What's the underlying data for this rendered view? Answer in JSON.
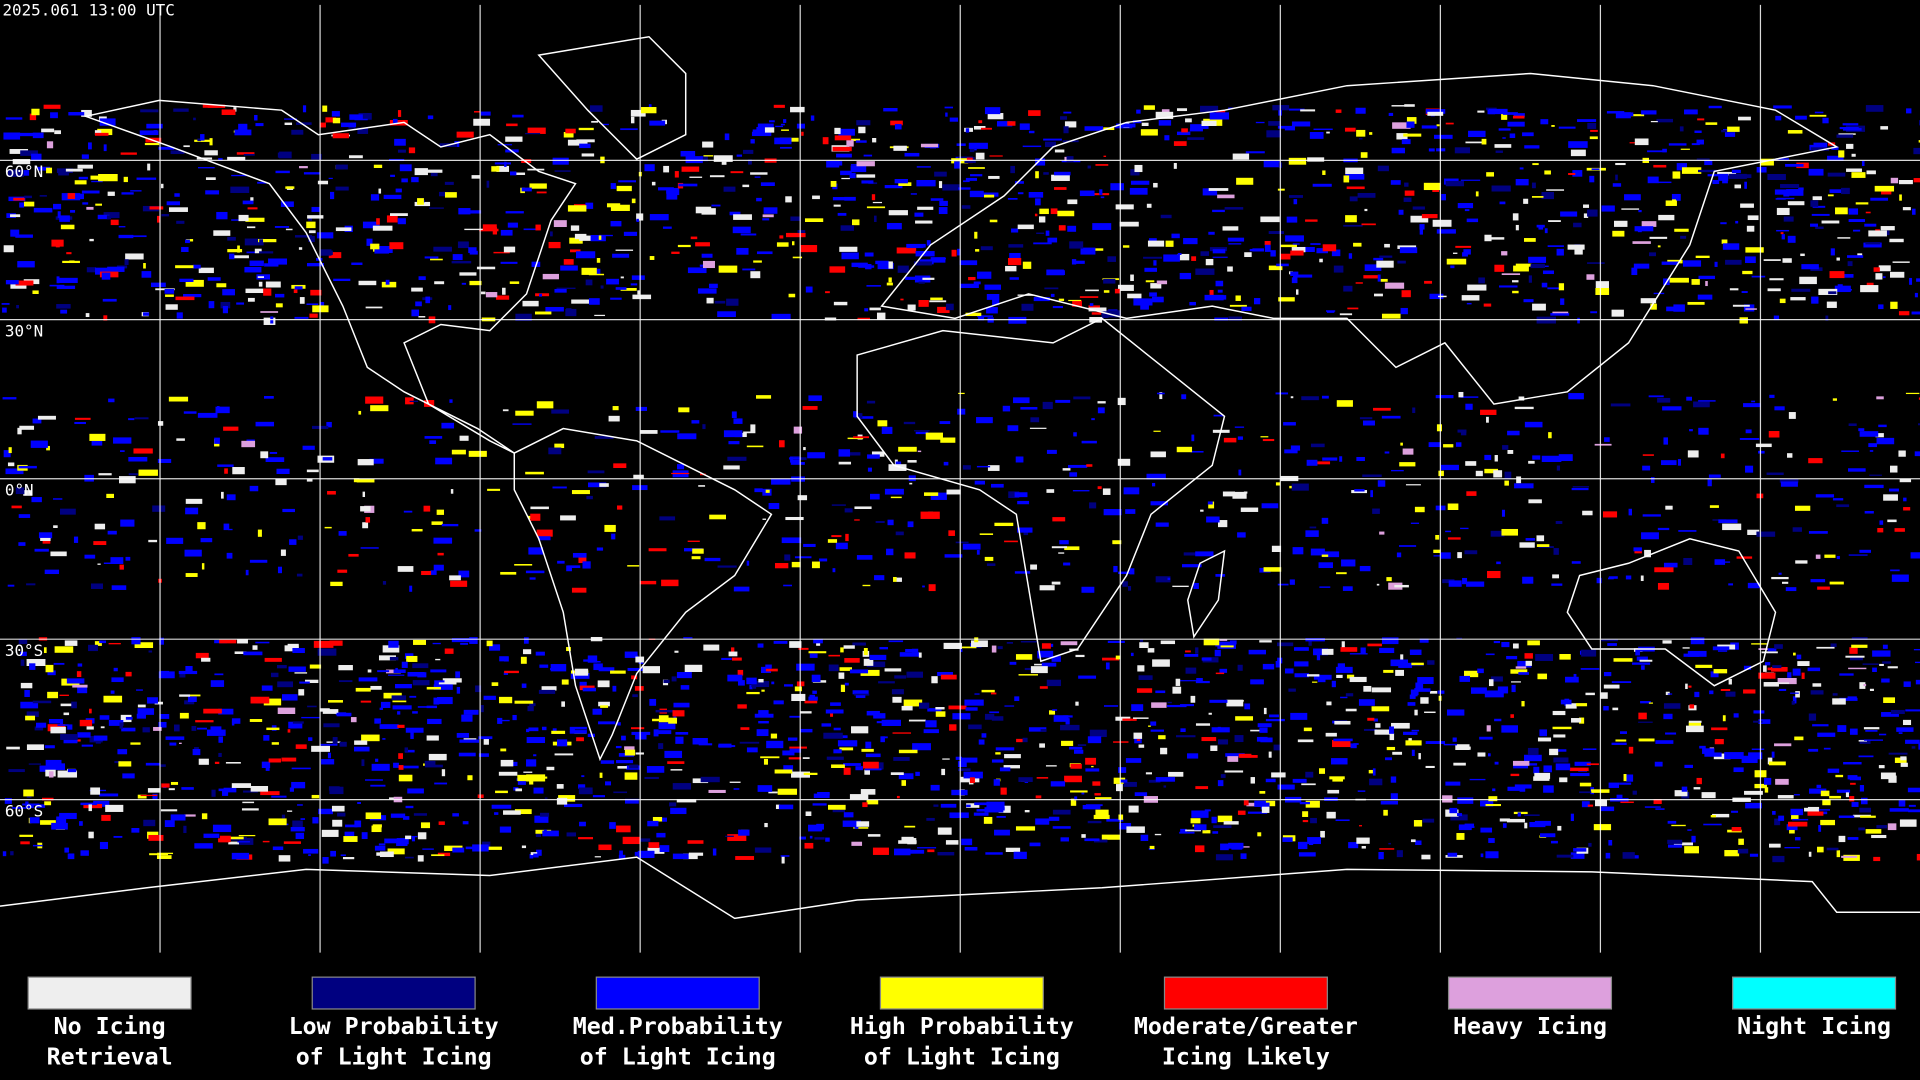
{
  "header": {
    "timestamp": "2025.061 13:00 UTC"
  },
  "map": {
    "latitude_labels": [
      "60°N",
      "30°N",
      "0°N",
      "30°S",
      "60°S"
    ]
  },
  "legend": {
    "items": [
      {
        "label": [
          "No Icing",
          "Retrieval"
        ],
        "color": "#eeeeee"
      },
      {
        "label": [
          "Low Probability",
          "of Light Icing"
        ],
        "color": "#000080"
      },
      {
        "label": [
          "Med.Probability",
          "of Light Icing"
        ],
        "color": "#0000ff"
      },
      {
        "label": [
          "High Probability",
          "of Light Icing"
        ],
        "color": "#ffff00"
      },
      {
        "label": [
          "Moderate/Greater",
          "Icing Likely"
        ],
        "color": "#ff0000"
      },
      {
        "label": [
          "Heavy Icing"
        ],
        "color": "#dda0dd"
      },
      {
        "label": [
          "Night Icing"
        ],
        "color": "#00ffff"
      }
    ]
  }
}
